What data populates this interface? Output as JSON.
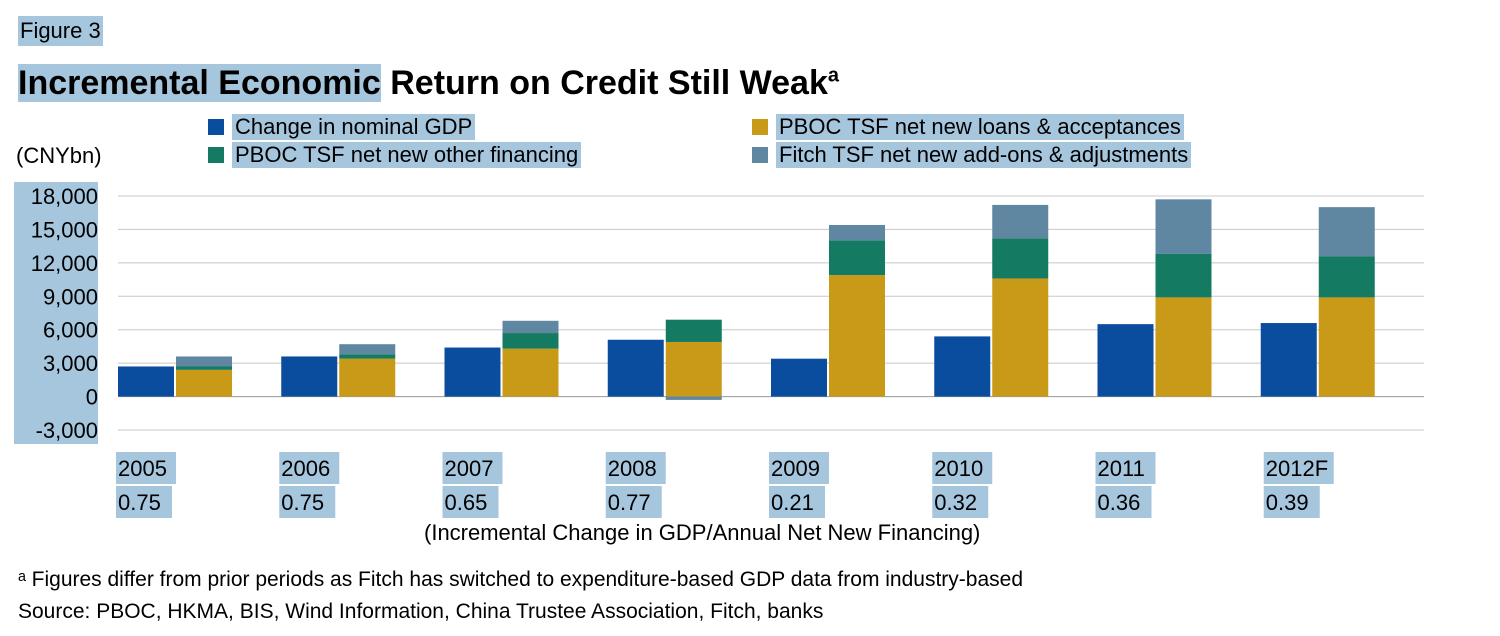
{
  "figure_label": "Figure 3",
  "title_part1": "Incremental Economic",
  "title_part2": " Return on Credit Still Weak",
  "title_sup": "a",
  "unit": "(CNYbn)",
  "axis_note": "(Incremental Change in GDP/Annual Net New Financing)",
  "footnote": "ᵃ Figures differ from prior periods as Fitch has switched to expenditure-based GDP data from industry-based",
  "source": "Source: PBOC, HKMA, BIS, Wind Information, China Trustee Association, Fitch, banks",
  "colors": {
    "gdp": "#0a4d9e",
    "loans": "#c99a17",
    "other": "#157a62",
    "addons": "#5f87a2",
    "highlight": "#a6c6de"
  },
  "chart_data": {
    "type": "bar",
    "categories": [
      "2005",
      "2006",
      "2007",
      "2008",
      "2009",
      "2010",
      "2011",
      "2012F"
    ],
    "ratios": [
      "0.75",
      "0.75",
      "0.65",
      "0.77",
      "0.21",
      "0.32",
      "0.36",
      "0.39"
    ],
    "ylim": [
      -3000,
      18000
    ],
    "yticks": [
      "18,000",
      "15,000",
      "12,000",
      "9,000",
      "6,000",
      "3,000",
      "0",
      "-3,000"
    ],
    "ytick_values": [
      18000,
      15000,
      12000,
      9000,
      6000,
      3000,
      0,
      -3000
    ],
    "grid": true,
    "legend_position": "top",
    "series": [
      {
        "name": "Change in nominal GDP",
        "color_key": "gdp",
        "stack": "gdp",
        "values": [
          2700,
          3600,
          4400,
          5100,
          3400,
          5400,
          6500,
          6600
        ]
      },
      {
        "name": "PBOC TSF net new loans & acceptances",
        "color_key": "loans",
        "stack": "tsf",
        "values": [
          2400,
          3400,
          4300,
          4900,
          10900,
          10600,
          8900,
          8900
        ]
      },
      {
        "name": "PBOC TSF net new other financing",
        "color_key": "other",
        "stack": "tsf",
        "values": [
          300,
          400,
          1400,
          2000,
          3100,
          3600,
          3900,
          3700
        ]
      },
      {
        "name": "Fitch TSF net new add-ons & adjustments",
        "color_key": "addons",
        "stack": "tsf",
        "values": [
          900,
          900,
          1100,
          -300,
          1400,
          3000,
          4900,
          4400
        ]
      }
    ]
  }
}
